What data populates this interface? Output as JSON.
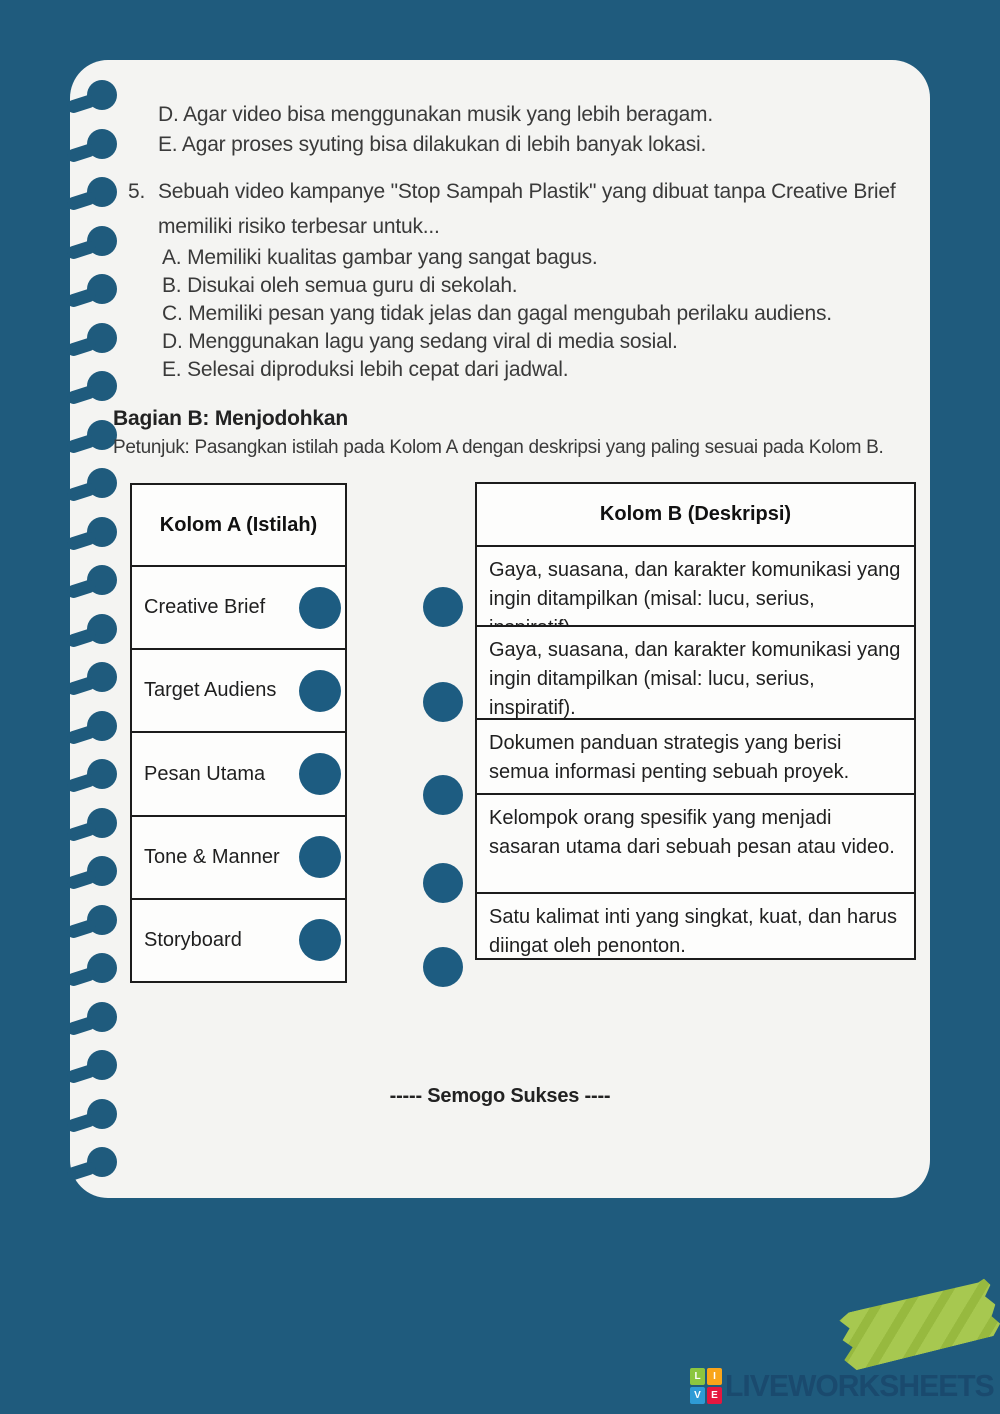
{
  "page": {
    "background_color": "#1f5b7d",
    "paper_color": "#f4f4f2"
  },
  "quiz": {
    "prev_options": [
      "D. Agar video bisa menggunakan musik yang lebih beragam.",
      "E. Agar proses syuting bisa dilakukan di lebih banyak lokasi."
    ],
    "question5": {
      "number": "5.",
      "text": "Sebuah video kampanye \"Stop Sampah Plastik\" yang dibuat tanpa Creative Brief memiliki risiko terbesar untuk...",
      "options": [
        "A. Memiliki kualitas gambar yang sangat bagus.",
        "B. Disukai oleh semua guru di sekolah.",
        "C. Memiliki pesan yang tidak jelas dan gagal mengubah perilaku audiens.",
        "D. Menggunakan lagu yang sedang viral di media sosial.",
        "E. Selesai diproduksi lebih cepat dari jadwal."
      ]
    }
  },
  "section_b": {
    "heading": "Bagian B: Menjodohkan",
    "instruction": "Petunjuk: Pasangkan istilah pada Kolom A dengan deskripsi yang paling sesuai pada Kolom B.",
    "kolom_a": {
      "header": "Kolom A (Istilah)",
      "items": [
        "Creative Brief",
        "Target Audiens",
        "Pesan Utama",
        "Tone & Manner",
        "Storyboard"
      ]
    },
    "kolom_b": {
      "header": "Kolom B (Deskripsi)",
      "items": [
        "Gaya, suasana, dan karakter komunikasi yang ingin ditampilkan (misal: lucu, serius, inspiratif).",
        "Gaya, suasana, dan karakter komunikasi yang ingin ditampilkan (misal: lucu, serius, inspiratif).",
        "Dokumen panduan strategis yang berisi semua informasi penting sebuah proyek.",
        "Kelompok orang spesifik yang menjadi sasaran utama dari sebuah pesan atau video.",
        "Satu kalimat inti yang singkat, kuat, dan harus diingat oleh penonton."
      ]
    }
  },
  "footer": {
    "closing": "----- Semogo Sukses ----",
    "brand": {
      "letters": [
        "L",
        "I",
        "V",
        "E"
      ],
      "name": "LIVEWORKSHEETS",
      "letter_colors": [
        "#8cc63f",
        "#f9a51a",
        "#2e9bd6",
        "#e5173f"
      ],
      "text_color": "#1a4a6e"
    }
  },
  "colors": {
    "accent_teal": "#1f5b7d",
    "matching_dot": "#1d5c81",
    "tape_green": "#a7c850"
  }
}
